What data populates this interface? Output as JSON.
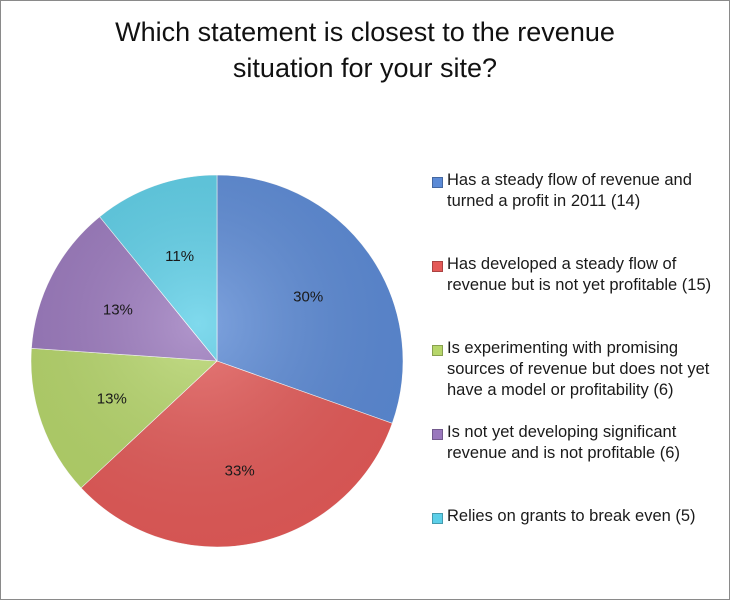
{
  "chart_data": {
    "type": "pie",
    "title_lines": [
      "Which statement is closest to the revenue",
      "situation for your site?"
    ],
    "start_angle_deg": 0,
    "direction": "clockwise",
    "slices": [
      {
        "label": "Has a steady flow of revenue and turned a profit in 2011 (14)",
        "count": 14,
        "percent_label": "30%",
        "color": "#5b8ad6"
      },
      {
        "label": "Has developed a steady flow of revenue but is not yet profitable (15)",
        "count": 15,
        "percent_label": "33%",
        "color": "#e45a58"
      },
      {
        "label": "Is experimenting with promising sources of revenue but does not yet have a model or profitability (6)",
        "count": 6,
        "percent_label": "13%",
        "color": "#b6d66a"
      },
      {
        "label": "Is not yet developing significant revenue and is not profitable (6)",
        "count": 6,
        "percent_label": "13%",
        "color": "#9a78bd"
      },
      {
        "label": "Relies on grants to break even (5)",
        "count": 5,
        "percent_label": "11%",
        "color": "#5ccfe8"
      }
    ],
    "legend_position": "right"
  }
}
